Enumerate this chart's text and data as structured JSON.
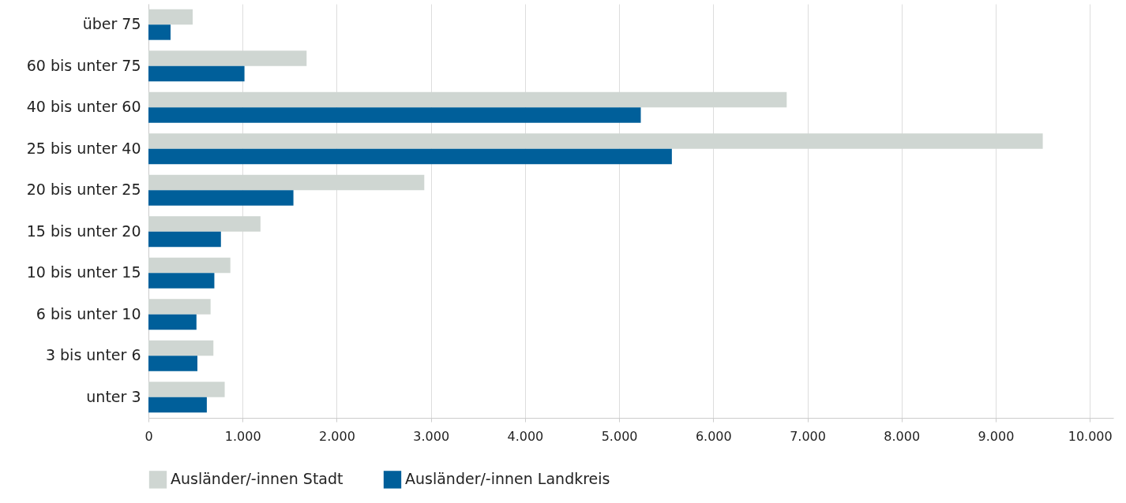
{
  "chart_data": {
    "type": "bar",
    "orientation": "horizontal",
    "categories": [
      "über 75",
      "60 bis unter 75",
      "40 bis unter 60",
      "25 bis unter 40",
      "20 bis unter 25",
      "15 bis unter 20",
      "10 bis unter 15",
      "6 bis unter 10",
      "3 bis unter 6",
      "unter 3"
    ],
    "series": [
      {
        "name": "Ausländer/-innen Stadt",
        "color": "#cfd6d2",
        "values": [
          470,
          1680,
          6780,
          9500,
          2930,
          1190,
          870,
          660,
          690,
          810
        ]
      },
      {
        "name": "Ausländer/-innen Landkreis",
        "color": "#005f9a",
        "values": [
          235,
          1020,
          5230,
          5560,
          1540,
          770,
          700,
          510,
          520,
          620
        ]
      }
    ],
    "xlim": [
      0,
      10250
    ],
    "xticks": [
      0,
      {
        "value": 1000,
        "label": "1.000"
      },
      {
        "value": 2000,
        "label": "2.000"
      },
      {
        "value": 3000,
        "label": "3.000"
      },
      {
        "value": 4000,
        "label": "4.000"
      },
      {
        "value": 5000,
        "label": "5.000"
      },
      {
        "value": 6000,
        "label": "6.000"
      },
      {
        "value": 7000,
        "label": "7.000"
      },
      {
        "value": 8000,
        "label": "8.000"
      },
      {
        "value": 9000,
        "label": "9.000"
      },
      {
        "value": 10000,
        "label": "10.000"
      }
    ],
    "grid": "x",
    "legend": "bottom"
  }
}
